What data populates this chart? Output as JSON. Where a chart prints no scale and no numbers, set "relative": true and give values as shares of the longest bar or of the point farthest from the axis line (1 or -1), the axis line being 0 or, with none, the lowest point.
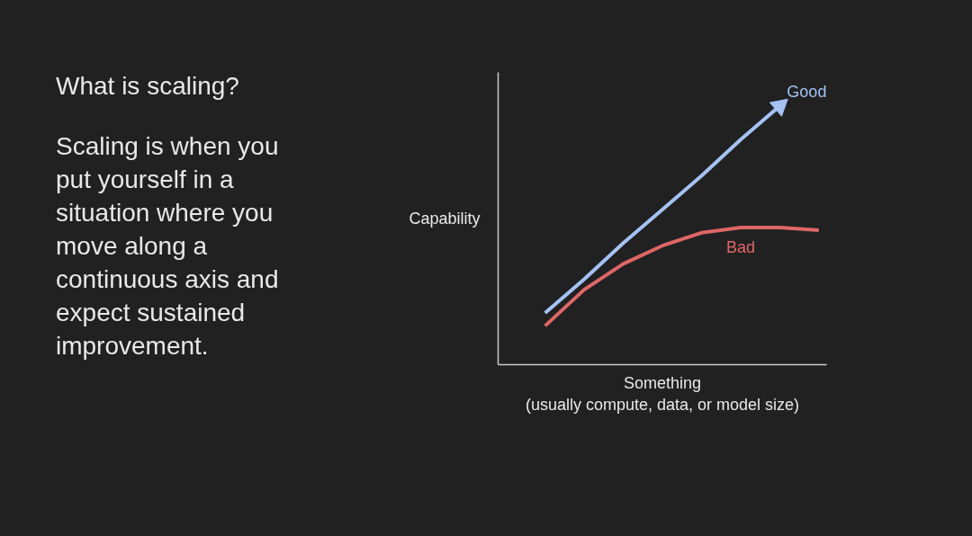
{
  "chart_data": {
    "type": "line",
    "relative": true,
    "title": "What is scaling?",
    "annotations": [
      "Scaling is when you put yourself in a situation where you move along a continuous axis and expect sustained improvement."
    ],
    "xlabel": "Something\n(usually compute, data, or model size)",
    "ylabel": "Capability",
    "categories": [
      null,
      null,
      null,
      null,
      null,
      null,
      null,
      null
    ],
    "series": [
      {
        "name": "Good",
        "color": "#a4c2f4",
        "values": [
          0.2,
          0.33,
          0.47,
          0.6,
          0.73,
          0.87,
          1.0,
          null
        ]
      },
      {
        "name": "Bad",
        "color": "#e06666",
        "values": [
          0.15,
          0.29,
          0.39,
          0.46,
          0.51,
          0.53,
          0.53,
          0.52
        ]
      }
    ],
    "marker": "none",
    "line_style": "solid"
  }
}
